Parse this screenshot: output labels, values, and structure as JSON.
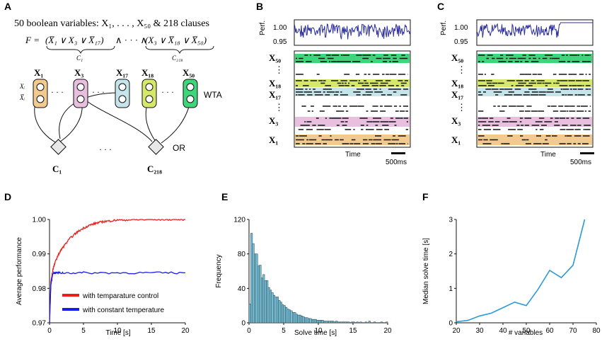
{
  "panels": {
    "A": "A",
    "B": "B",
    "C": "C",
    "D": "D",
    "E": "E",
    "F": "F"
  },
  "panel_a": {
    "title": "50 boolean variables: X₁, . . . , X₅₀ & 218 clauses",
    "formula_lhs": "F =",
    "clause1": "(X̅₁ ∨ X₃ ∨ X̅₁₇)",
    "and_dots": "∧ · · · ∧",
    "clause218": "(X₃ ∨ X̅₁₈ ∨ X̅₅₀)",
    "c1_sub": "C₁",
    "c218_sub": "C₂₁₈",
    "var_labels": [
      "X₁",
      "X₃",
      "X₁₇",
      "X₁₈",
      "X₅₀"
    ],
    "xi_label": "Xᵢ",
    "xi_bar_label": "X̅ᵢ",
    "wta_label": "WTA",
    "or_label": "OR",
    "clause_labels": [
      "C₁",
      "C₂₁₈"
    ],
    "dots": "· · ·"
  },
  "panel_b": {
    "perf_label": "Perf.",
    "ytick_top": "1.00",
    "ytick_bottom": "0.95",
    "raster_labels": [
      "X₅₀",
      "⋮",
      "X₁₈",
      "X₁₇",
      "⋮",
      "X₃",
      "X₁"
    ],
    "time_label": "Time",
    "scale_label": "500ms"
  },
  "panel_c": {
    "perf_label": "Perf.",
    "ytick_top": "1.00",
    "ytick_bottom": "0.95",
    "raster_labels": [
      "X₅₀",
      "⋮",
      "X₁₈",
      "X₁₇",
      "⋮",
      "X₃",
      "X₁"
    ],
    "time_label": "Time",
    "scale_label": "500ms"
  },
  "colors": {
    "x1": "#f2c98e",
    "x3": "#e9bfe0",
    "x17": "#c6e5ea",
    "x18": "#d6e86a",
    "x50": "#3ed67a",
    "perf_line": "#2c2f9e",
    "red": "#e8201c",
    "blue": "#1c1ce8",
    "hist": "#7cc3d8",
    "line_f": "#2a9ad8"
  },
  "chart_data": [
    {
      "id": "D",
      "type": "line",
      "xlabel": "Time [s]",
      "ylabel": "Average performance",
      "xlim": [
        0,
        20
      ],
      "ylim": [
        0.97,
        1.0
      ],
      "xticks": [
        "0",
        "5",
        "10",
        "15",
        "20"
      ],
      "yticks": [
        "0.97",
        "0.98",
        "0.99",
        "1.00"
      ],
      "series": [
        {
          "name": "with temparature control",
          "x": [
            0,
            0.2,
            0.5,
            1,
            1.5,
            2,
            3,
            4,
            5,
            6,
            7,
            8,
            9,
            10,
            12,
            14,
            16,
            18,
            20
          ],
          "values": [
            0.97,
            0.982,
            0.9855,
            0.9885,
            0.9905,
            0.992,
            0.9945,
            0.9962,
            0.9975,
            0.9984,
            0.999,
            0.9994,
            0.9996,
            0.9998,
            0.9999,
            0.99995,
            1.0,
            1.0,
            1.0
          ]
        },
        {
          "name": "with constant temperature",
          "x": [
            0,
            0.2,
            0.5,
            1,
            2,
            5,
            10,
            15,
            20
          ],
          "values": [
            0.97,
            0.981,
            0.9845,
            0.9845,
            0.9845,
            0.9845,
            0.9845,
            0.9845,
            0.9845
          ]
        }
      ],
      "legend": "bottom-right"
    },
    {
      "id": "E",
      "type": "bar",
      "xlabel": "Solve time [s]",
      "ylabel": "Frequency",
      "xlim": [
        0,
        20
      ],
      "ylim": [
        0,
        120
      ],
      "xticks": [
        "0",
        "5",
        "10",
        "15",
        "20"
      ],
      "yticks": [
        "0",
        "40",
        "80",
        "120"
      ],
      "bin_width": 0.25,
      "values": [
        22,
        104,
        92,
        80,
        80,
        66,
        67,
        52,
        56,
        49,
        49,
        41,
        38,
        35,
        32,
        30,
        30,
        26,
        24,
        21,
        20,
        18,
        16,
        15,
        14,
        12,
        12,
        10,
        9,
        9,
        8,
        7,
        6,
        6,
        5,
        5,
        4,
        4,
        4,
        3,
        3,
        3,
        3,
        2,
        2,
        2,
        2,
        2,
        2,
        1,
        2,
        1,
        1,
        1,
        1,
        1,
        1,
        1,
        0,
        1,
        1,
        0,
        1,
        0,
        1,
        0,
        0,
        1,
        0,
        2,
        0,
        0,
        1,
        0,
        0,
        0,
        1,
        0,
        0,
        1
      ]
    },
    {
      "id": "F",
      "type": "line",
      "xlabel": "# variables",
      "ylabel": "Median solve time [s]",
      "xlim": [
        20,
        80
      ],
      "ylim": [
        0,
        3
      ],
      "xticks": [
        "20",
        "30",
        "40",
        "50",
        "60",
        "70",
        "80"
      ],
      "yticks": [
        "0",
        "1",
        "2",
        "3"
      ],
      "x": [
        20,
        25,
        30,
        35,
        40,
        45,
        50,
        55,
        60,
        65,
        70,
        75
      ],
      "values": [
        0.03,
        0.07,
        0.2,
        0.28,
        0.44,
        0.6,
        0.5,
        0.97,
        1.52,
        1.31,
        1.67,
        3.0
      ]
    }
  ]
}
